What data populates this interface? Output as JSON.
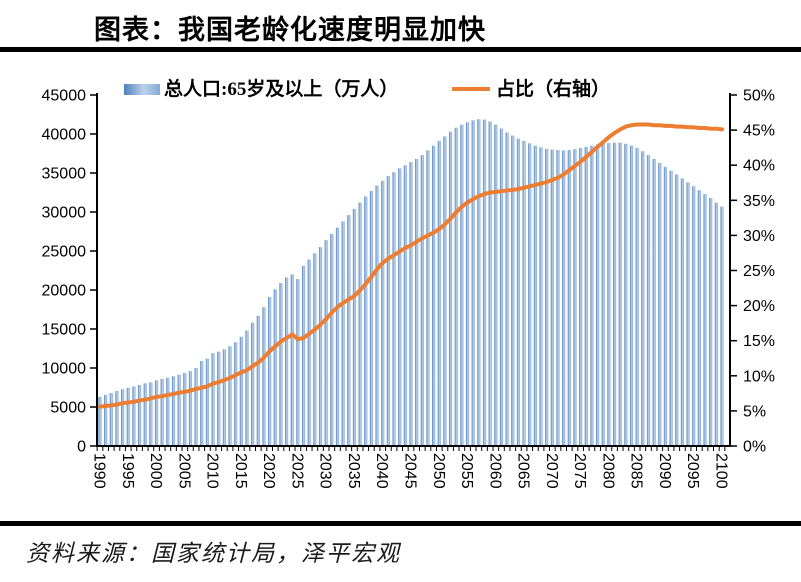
{
  "title": "图表：我国老龄化速度明显加快",
  "source": "资料来源：国家统计局，泽平宏观",
  "legend": {
    "bars_label": "总人口:65岁及以上（万人）",
    "line_label": "占比（右轴）"
  },
  "colors": {
    "axis": "#000000",
    "line": "#ED7D31",
    "bar_gradient_start": "#4F81BD",
    "bar_gradient_mid": "#BCD1E9",
    "bar_gradient_end": "#86ABD6"
  },
  "chart_data": {
    "type": "bar+line",
    "title": "图表：我国老龄化速度明显加快",
    "xlabel": "",
    "ylabel_left": "总人口:65岁及以上（万人）",
    "ylabel_right": "占比（右轴）",
    "legend_position": "top",
    "grid": false,
    "years": [
      1990,
      1991,
      1992,
      1993,
      1994,
      1995,
      1996,
      1997,
      1998,
      1999,
      2000,
      2001,
      2002,
      2003,
      2004,
      2005,
      2006,
      2007,
      2008,
      2009,
      2010,
      2011,
      2012,
      2013,
      2014,
      2015,
      2016,
      2017,
      2018,
      2019,
      2020,
      2021,
      2022,
      2023,
      2024,
      2025,
      2026,
      2027,
      2028,
      2029,
      2030,
      2031,
      2032,
      2033,
      2034,
      2035,
      2036,
      2037,
      2038,
      2039,
      2040,
      2041,
      2042,
      2043,
      2044,
      2045,
      2046,
      2047,
      2048,
      2049,
      2050,
      2051,
      2052,
      2053,
      2054,
      2055,
      2056,
      2057,
      2058,
      2059,
      2060,
      2061,
      2062,
      2063,
      2064,
      2065,
      2066,
      2067,
      2068,
      2069,
      2070,
      2071,
      2072,
      2073,
      2074,
      2075,
      2076,
      2077,
      2078,
      2079,
      2080,
      2081,
      2082,
      2083,
      2084,
      2085,
      2086,
      2087,
      2088,
      2089,
      2090,
      2091,
      2092,
      2093,
      2094,
      2095,
      2096,
      2097,
      2098,
      2099,
      2100
    ],
    "series": [
      {
        "name": "总人口:65岁及以上（万人）",
        "type": "bar",
        "axis": "left",
        "values": [
          6300,
          6560,
          6790,
          7060,
          7280,
          7470,
          7630,
          7820,
          8030,
          8170,
          8420,
          8590,
          8760,
          8940,
          9140,
          9360,
          9600,
          10000,
          10900,
          11200,
          11900,
          12100,
          12400,
          12800,
          13300,
          14000,
          14800,
          15800,
          16700,
          17800,
          19100,
          20100,
          20900,
          21600,
          22000,
          21400,
          23100,
          23900,
          24700,
          25500,
          26400,
          27200,
          28000,
          28800,
          29600,
          30400,
          31200,
          32000,
          32700,
          33400,
          34000,
          34600,
          35100,
          35600,
          36000,
          36400,
          36800,
          37300,
          37900,
          38500,
          39100,
          39700,
          40300,
          40800,
          41200,
          41500,
          41750,
          41900,
          41850,
          41600,
          41200,
          40700,
          40200,
          39800,
          39400,
          39100,
          38800,
          38500,
          38300,
          38100,
          38000,
          37950,
          37900,
          37950,
          38050,
          38200,
          38350,
          38500,
          38650,
          38750,
          38850,
          38900,
          38900,
          38750,
          38500,
          38200,
          37800,
          37300,
          36800,
          36300,
          35800,
          35300,
          34800,
          34300,
          33800,
          33300,
          32800,
          32300,
          31800,
          31200,
          30700
        ]
      },
      {
        "name": "占比（右轴）",
        "type": "line",
        "axis": "right",
        "unit": "%",
        "values": [
          5.6,
          5.7,
          5.8,
          5.9,
          6.1,
          6.2,
          6.3,
          6.5,
          6.6,
          6.8,
          7.0,
          7.1,
          7.3,
          7.4,
          7.6,
          7.7,
          7.9,
          8.1,
          8.3,
          8.5,
          8.9,
          9.1,
          9.4,
          9.7,
          10.1,
          10.5,
          10.8,
          11.4,
          11.9,
          12.6,
          13.5,
          14.2,
          14.9,
          15.4,
          15.9,
          15.2,
          15.4,
          16.0,
          16.6,
          17.3,
          18.1,
          19.0,
          19.8,
          20.4,
          20.9,
          21.4,
          22.2,
          23.1,
          24.1,
          25.2,
          26.1,
          26.7,
          27.2,
          27.7,
          28.2,
          28.6,
          29.1,
          29.6,
          30.0,
          30.4,
          30.9,
          31.6,
          32.4,
          33.3,
          34.1,
          34.7,
          35.2,
          35.6,
          35.9,
          36.1,
          36.2,
          36.3,
          36.4,
          36.5,
          36.6,
          36.8,
          37.0,
          37.2,
          37.4,
          37.6,
          37.9,
          38.2,
          38.7,
          39.3,
          39.9,
          40.5,
          41.2,
          41.9,
          42.6,
          43.3,
          44.0,
          44.6,
          45.1,
          45.5,
          45.7,
          45.8,
          45.8,
          45.8,
          45.7,
          45.7,
          45.6,
          45.6,
          45.5,
          45.5,
          45.4,
          45.4,
          45.3,
          45.3,
          45.2,
          45.2,
          45.1
        ]
      }
    ],
    "axes": {
      "left": {
        "min": 0,
        "max": 45000,
        "step": 5000,
        "ticks": [
          "0",
          "5000",
          "10000",
          "15000",
          "20000",
          "25000",
          "30000",
          "35000",
          "40000",
          "45000"
        ]
      },
      "right": {
        "min": 0,
        "max": 50,
        "step": 5,
        "ticks": [
          "0%",
          "5%",
          "10%",
          "15%",
          "20%",
          "25%",
          "30%",
          "35%",
          "40%",
          "45%",
          "50%"
        ]
      },
      "x_tick_labels": [
        "1990",
        "1995",
        "2000",
        "2005",
        "2010",
        "2015",
        "2020",
        "2025",
        "2030",
        "2035",
        "2040",
        "2045",
        "2050",
        "2055",
        "2060",
        "2065",
        "2070",
        "2075",
        "2080",
        "2085",
        "2090",
        "2095",
        "2100"
      ]
    }
  }
}
